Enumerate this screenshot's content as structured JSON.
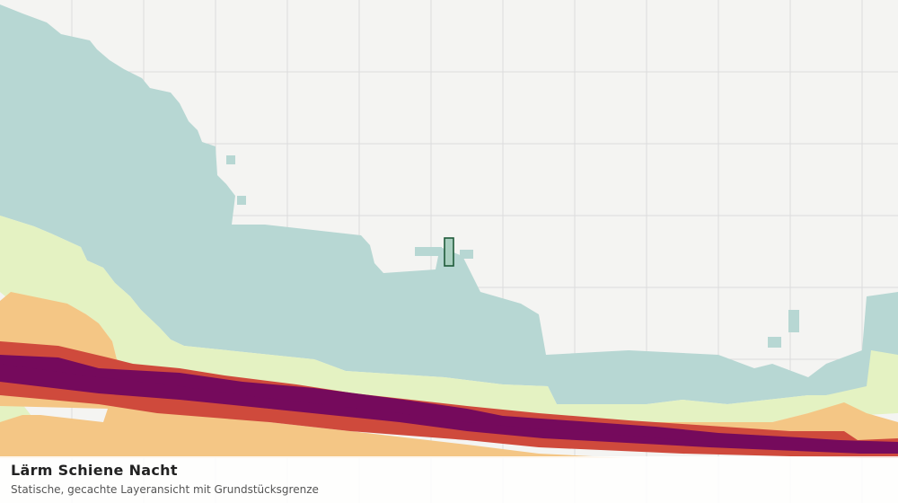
{
  "map": {
    "title": "Lärm Schiene Nacht",
    "subtitle": "Statische, gecachte Layeransicht mit Grundstücksgrenze",
    "colors": {
      "background": "#f4f4f2",
      "grid": "#dcdcdc",
      "noise_band_1": "#b7d7d3",
      "noise_band_2": "#e4f2c2",
      "noise_band_3": "#f4c685",
      "noise_band_4": "#cf4a3c",
      "noise_band_5": "#750a5c",
      "parcel_fill": "#a9cfc0",
      "parcel_stroke": "#1e5a3a"
    }
  }
}
